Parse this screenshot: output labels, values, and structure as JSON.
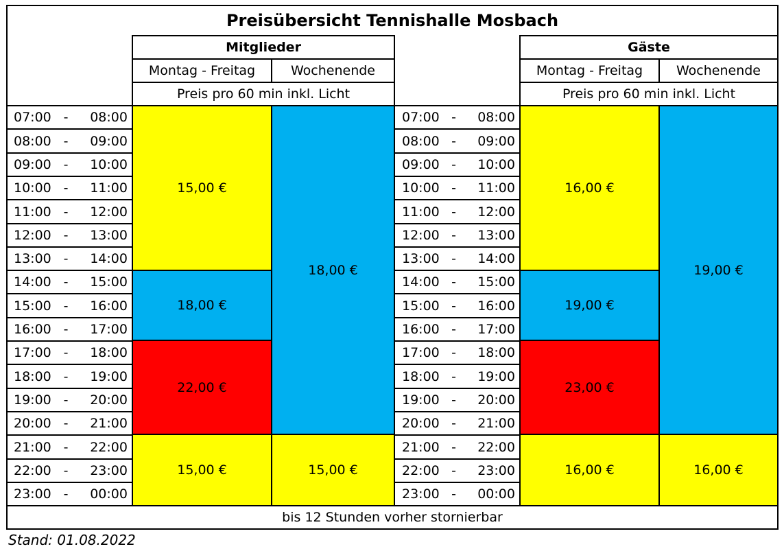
{
  "title": "Preisübersicht Tennishalle Mosbach",
  "members": {
    "label": "Mitglieder",
    "weekday_label": "Montag - Freitag",
    "weekend_label": "Wochenende",
    "price_note": "Preis pro 60 min inkl. Licht",
    "weekday_prices": [
      "15,00 €",
      "18,00 €",
      "22,00 €",
      "15,00 €"
    ],
    "weekend_prices": [
      "18,00 €",
      "15,00 €"
    ]
  },
  "guests": {
    "label": "Gäste",
    "weekday_label": "Montag - Freitag",
    "weekend_label": "Wochenende",
    "price_note": "Preis pro 60 min inkl. Licht",
    "weekday_prices": [
      "16,00 €",
      "19,00 €",
      "23,00 €",
      "16,00 €"
    ],
    "weekend_prices": [
      "19,00 €",
      "16,00 €"
    ]
  },
  "time_slots": [
    {
      "start": "07:00",
      "end": "08:00"
    },
    {
      "start": "08:00",
      "end": "09:00"
    },
    {
      "start": "09:00",
      "end": "10:00"
    },
    {
      "start": "10:00",
      "end": "11:00"
    },
    {
      "start": "11:00",
      "end": "12:00"
    },
    {
      "start": "12:00",
      "end": "13:00"
    },
    {
      "start": "13:00",
      "end": "14:00"
    },
    {
      "start": "14:00",
      "end": "15:00"
    },
    {
      "start": "15:00",
      "end": "16:00"
    },
    {
      "start": "16:00",
      "end": "17:00"
    },
    {
      "start": "17:00",
      "end": "18:00"
    },
    {
      "start": "18:00",
      "end": "19:00"
    },
    {
      "start": "19:00",
      "end": "20:00"
    },
    {
      "start": "20:00",
      "end": "21:00"
    },
    {
      "start": "21:00",
      "end": "22:00"
    },
    {
      "start": "22:00",
      "end": "23:00"
    },
    {
      "start": "23:00",
      "end": "00:00"
    }
  ],
  "time_dash": "-",
  "cancellation_note": "bis 12 Stunden vorher stornierbar",
  "stand": "Stand: 01.08.2022",
  "colors": {
    "yellow": "#ffff00",
    "blue": "#00b0f0",
    "red": "#ff0000"
  }
}
